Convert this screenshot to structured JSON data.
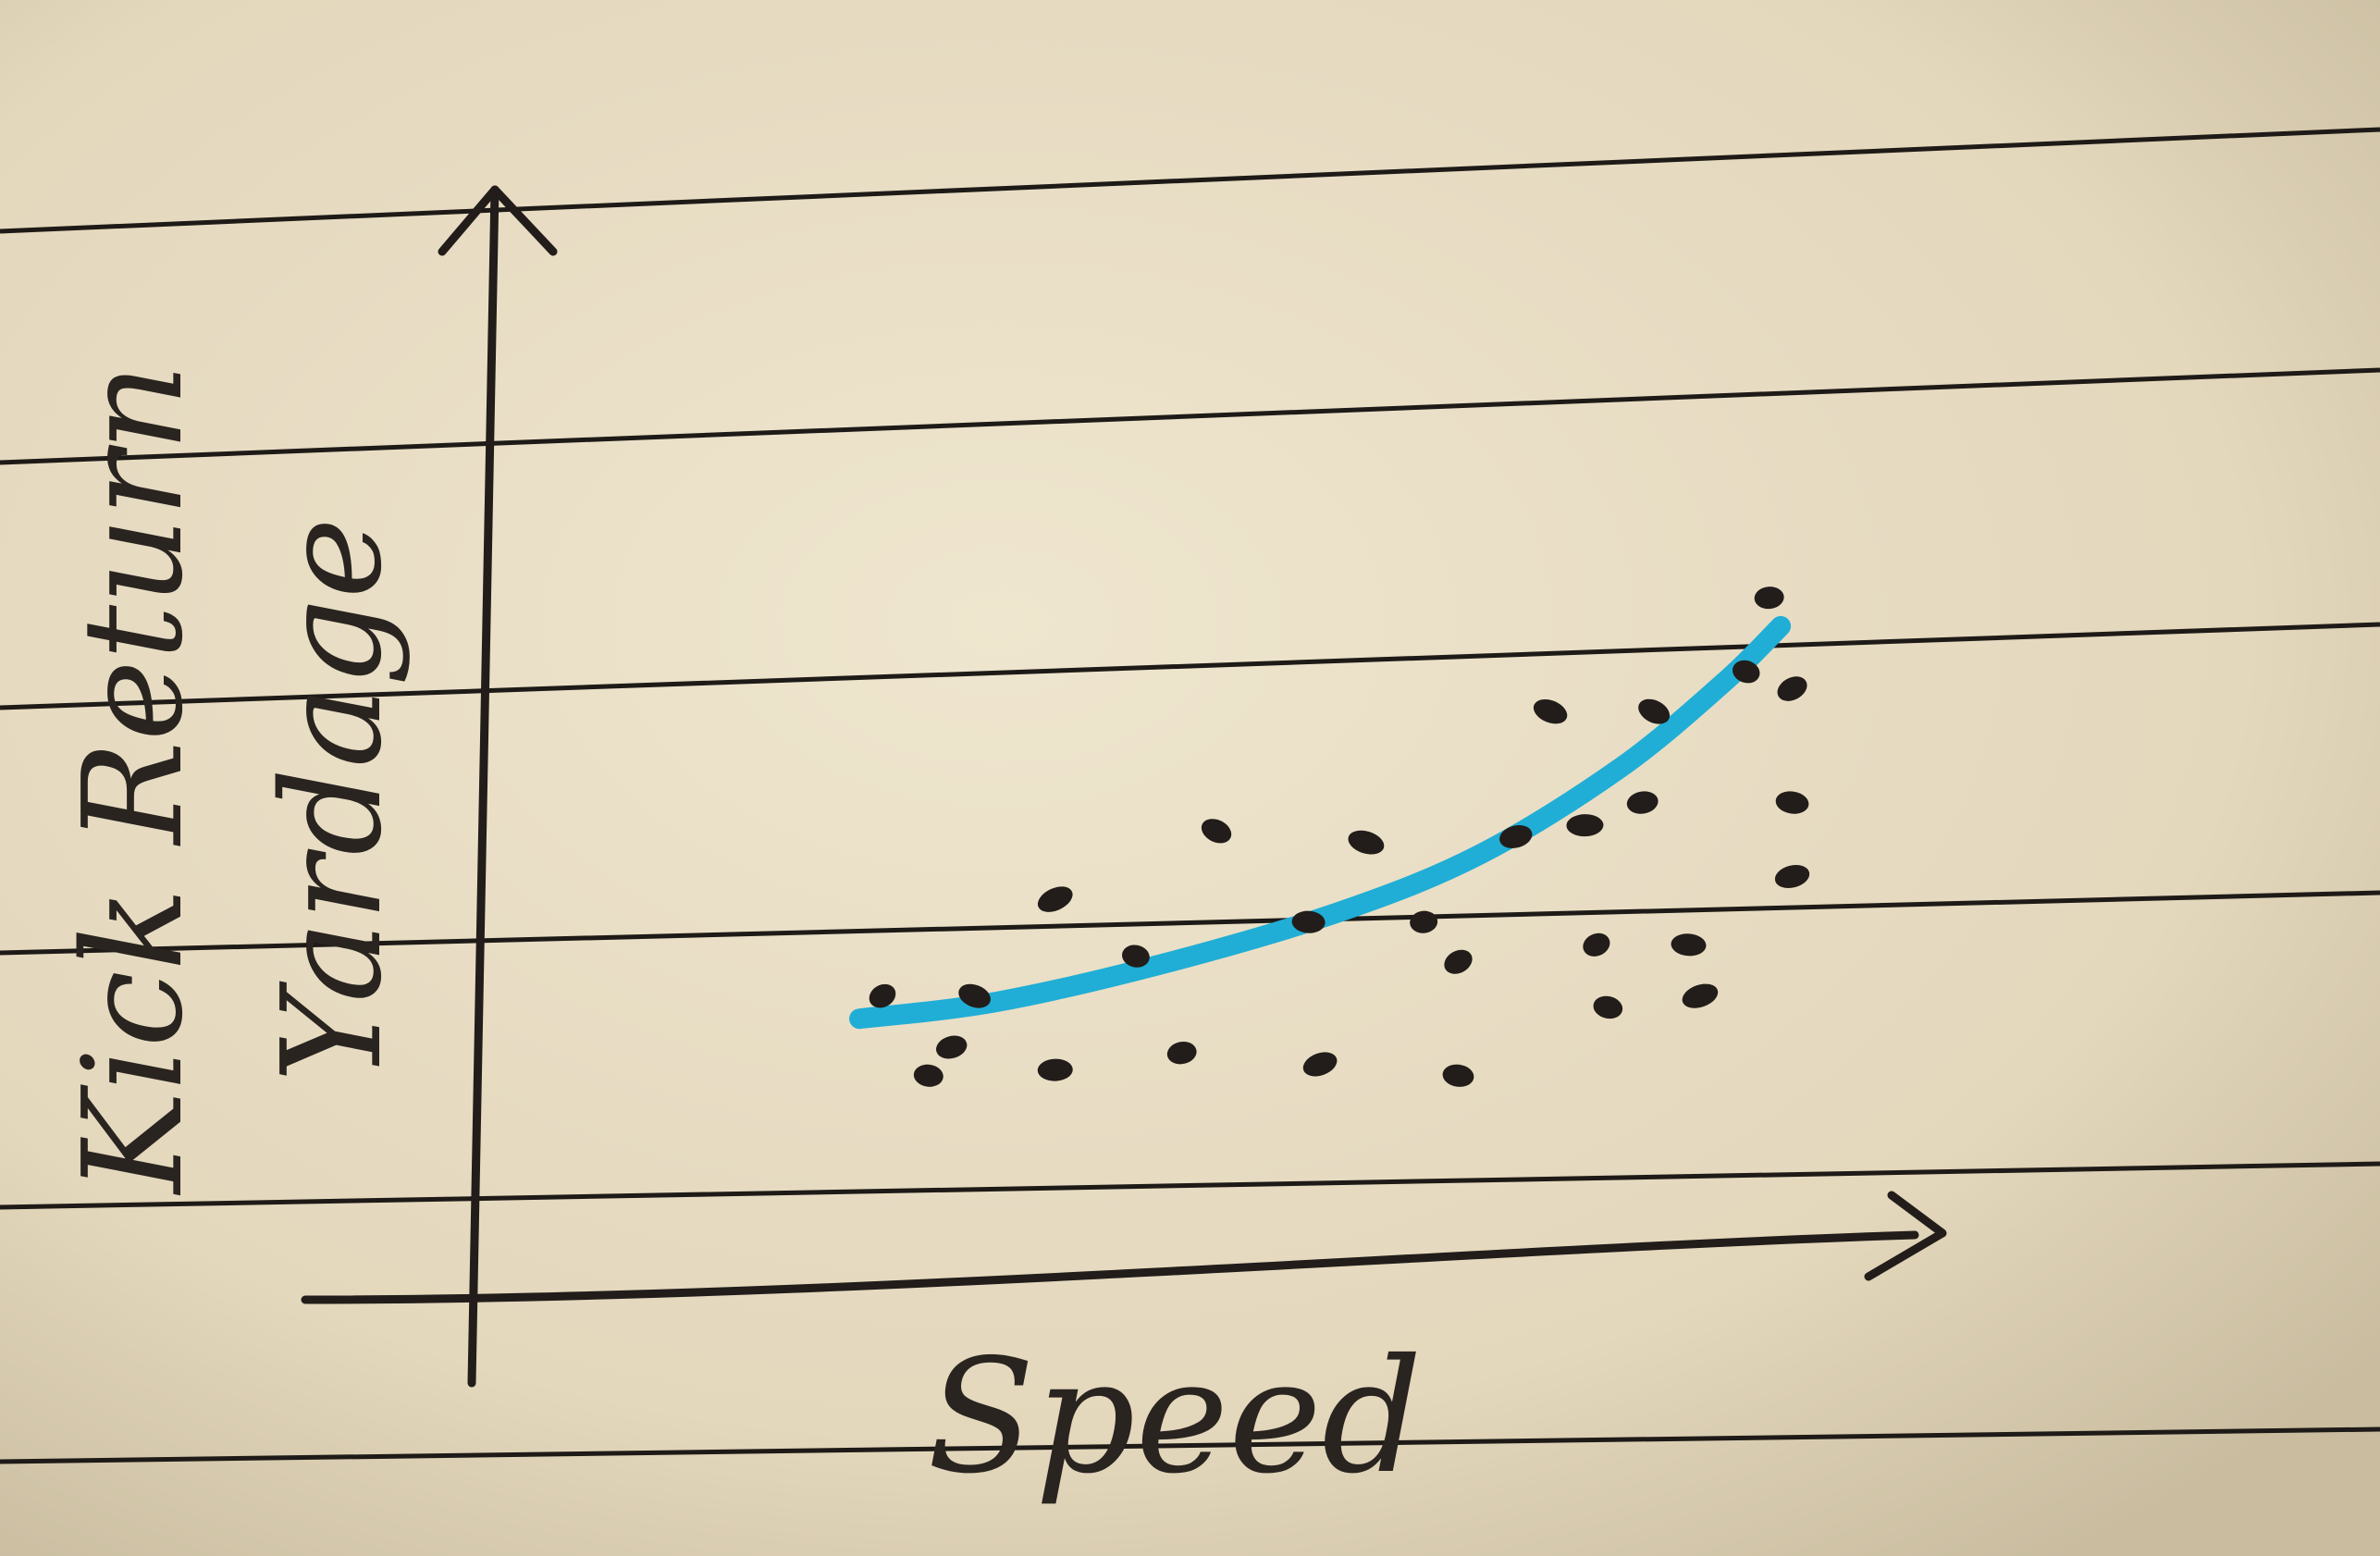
{
  "paper": {
    "color": "#e7dcc3",
    "ruling_color": "#1e1a17",
    "ink_color": "#221d1a"
  },
  "chart_data": {
    "type": "scatter",
    "title": "",
    "xlabel": "Speed",
    "ylabel_line1": "Kick Return",
    "ylabel_line2": "Yardage",
    "xlim": [
      0,
      10
    ],
    "ylim": [
      0,
      10
    ],
    "hand_drawn": true,
    "axis_ticks": false,
    "series": [
      {
        "kind": "points",
        "color": "#221d1a",
        "points": [
          {
            "x": 2.0,
            "y": 2.9
          },
          {
            "x": 2.4,
            "y": 1.5
          },
          {
            "x": 2.6,
            "y": 2.0
          },
          {
            "x": 2.8,
            "y": 2.9
          },
          {
            "x": 3.5,
            "y": 1.6
          },
          {
            "x": 3.5,
            "y": 4.6
          },
          {
            "x": 4.2,
            "y": 3.6
          },
          {
            "x": 4.6,
            "y": 1.9
          },
          {
            "x": 4.9,
            "y": 5.8
          },
          {
            "x": 5.7,
            "y": 4.2
          },
          {
            "x": 5.8,
            "y": 1.7
          },
          {
            "x": 6.2,
            "y": 5.6
          },
          {
            "x": 6.7,
            "y": 4.2
          },
          {
            "x": 7.0,
            "y": 3.5
          },
          {
            "x": 7.0,
            "y": 1.5
          },
          {
            "x": 7.5,
            "y": 5.7
          },
          {
            "x": 7.8,
            "y": 7.9
          },
          {
            "x": 8.1,
            "y": 5.9
          },
          {
            "x": 8.2,
            "y": 3.8
          },
          {
            "x": 8.3,
            "y": 2.7
          },
          {
            "x": 8.6,
            "y": 6.3
          },
          {
            "x": 8.7,
            "y": 7.9
          },
          {
            "x": 9.0,
            "y": 3.8
          },
          {
            "x": 9.1,
            "y": 2.9
          },
          {
            "x": 9.5,
            "y": 8.6
          },
          {
            "x": 9.7,
            "y": 9.9
          },
          {
            "x": 9.9,
            "y": 8.3
          },
          {
            "x": 9.9,
            "y": 6.3
          },
          {
            "x": 9.9,
            "y": 5.0
          }
        ]
      },
      {
        "kind": "trend",
        "color": "#20aed6",
        "points": [
          {
            "x": 1.8,
            "y": 2.5
          },
          {
            "x": 3.0,
            "y": 2.8
          },
          {
            "x": 4.5,
            "y": 3.5
          },
          {
            "x": 6.0,
            "y": 4.4
          },
          {
            "x": 7.2,
            "y": 5.4
          },
          {
            "x": 8.4,
            "y": 6.9
          },
          {
            "x": 9.3,
            "y": 8.4
          },
          {
            "x": 9.8,
            "y": 9.4
          }
        ]
      }
    ]
  }
}
